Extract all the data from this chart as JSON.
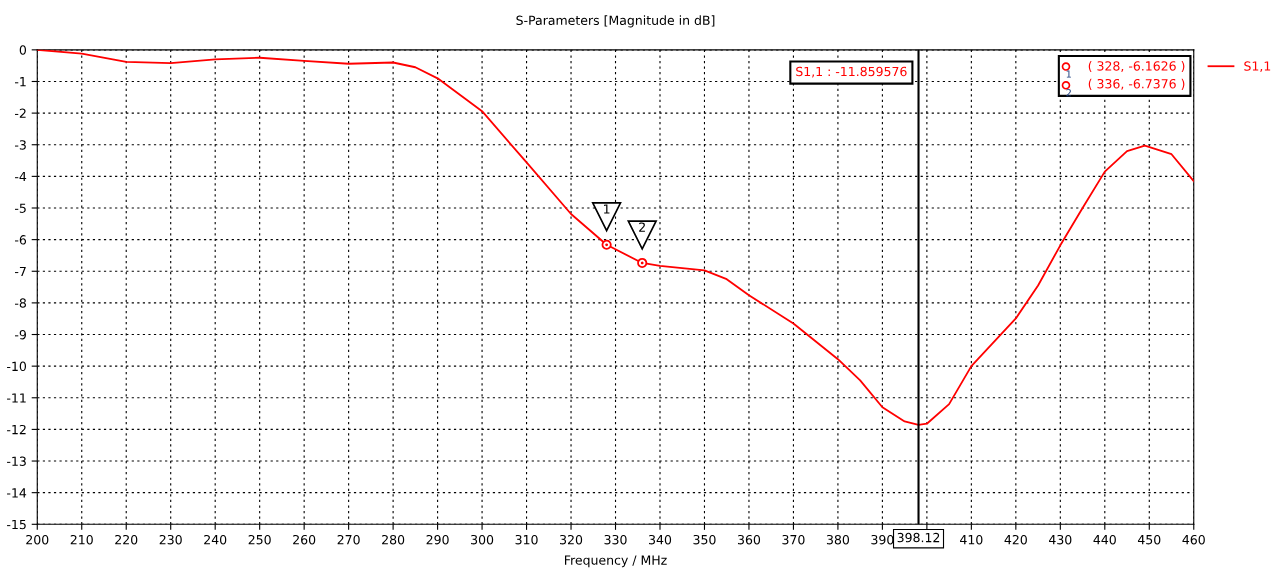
{
  "chart_data": {
    "type": "line",
    "title": "S-Parameters [Magnitude in dB]",
    "xlabel": "Frequency / MHz",
    "x": [
      200,
      210,
      220,
      230,
      240,
      250,
      260,
      270,
      280,
      285,
      290,
      300,
      310,
      320,
      328,
      336,
      340,
      345,
      350,
      355,
      360,
      370,
      380,
      385,
      390,
      395,
      398.12,
      400,
      405,
      410,
      420,
      425,
      430,
      435,
      440,
      445,
      449,
      455,
      460
    ],
    "series": [
      {
        "name": "S1,1",
        "color": "#ff0000",
        "values": [
          0,
          -0.12,
          -0.38,
          -0.42,
          -0.3,
          -0.25,
          -0.35,
          -0.44,
          -0.4,
          -0.55,
          -0.9,
          -1.94,
          -3.56,
          -5.19,
          -6.1626,
          -6.7376,
          -6.83,
          -6.9,
          -6.97,
          -7.25,
          -7.76,
          -8.65,
          -9.78,
          -10.45,
          -11.3,
          -11.75,
          -11.86,
          -11.82,
          -11.2,
          -10.0,
          -8.49,
          -7.45,
          -6.18,
          -5.0,
          -3.85,
          -3.2,
          -3.03,
          -3.3,
          -4.15
        ]
      }
    ],
    "xlim": [
      200,
      460
    ],
    "ylim": [
      -15,
      0
    ],
    "xticks": [
      200,
      210,
      220,
      230,
      240,
      250,
      260,
      270,
      280,
      290,
      300,
      310,
      320,
      330,
      340,
      350,
      360,
      370,
      380,
      390,
      {
        "value": 400,
        "label": null
      },
      410,
      420,
      430,
      440,
      450,
      460
    ],
    "yticks": [
      0,
      -1,
      -2,
      -3,
      -4,
      -5,
      -6,
      -7,
      -8,
      -9,
      -10,
      -11,
      -12,
      -13,
      -14,
      -15
    ],
    "ref_lines": [
      {
        "axis": "x",
        "value": 398.12,
        "label": "398.12",
        "color": "#000000"
      }
    ],
    "annotations": [
      {
        "text": "1",
        "x": 328,
        "y": -6.1626
      },
      {
        "text": "2",
        "x": 336,
        "y": -6.7376
      },
      "S1,1 : -11.859576",
      "( 328, -6.1626 )",
      "( 336, -6.7376 )"
    ],
    "grid": true,
    "legend": "right",
    "line_style": "solid"
  }
}
